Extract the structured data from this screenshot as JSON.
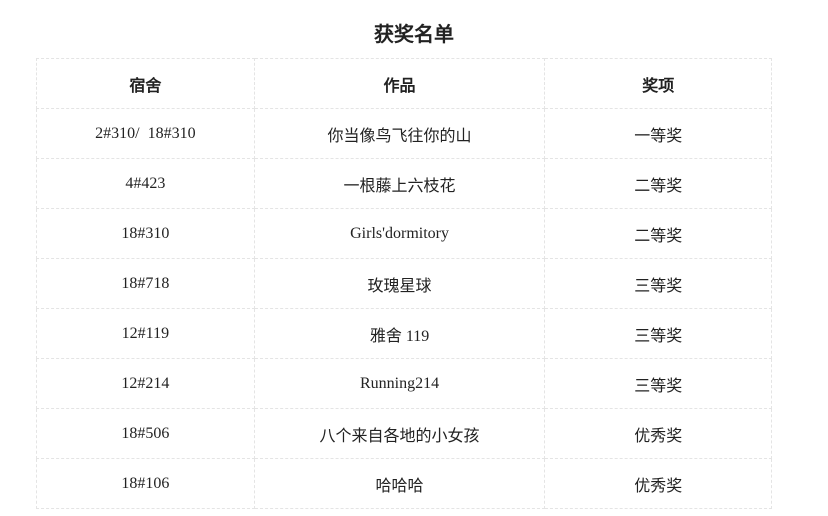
{
  "title": "获奖名单",
  "headers": [
    "宿舍",
    "作品",
    "奖项"
  ],
  "rows": [
    [
      "2#310/  18#310",
      "你当像鸟飞往你的山",
      "一等奖"
    ],
    [
      "4#423",
      "一根藤上六枝花",
      "二等奖"
    ],
    [
      "18#310",
      "Girls'dormitory",
      "二等奖"
    ],
    [
      "18#718",
      "玫瑰星球",
      "三等奖"
    ],
    [
      "12#119",
      "雅舍 119",
      "三等奖"
    ],
    [
      "12#214",
      "Running214",
      "三等奖"
    ],
    [
      "18#506",
      "八个来自各地的小女孩",
      "优秀奖"
    ],
    [
      "18#106",
      "哈哈哈",
      "优秀奖"
    ]
  ]
}
